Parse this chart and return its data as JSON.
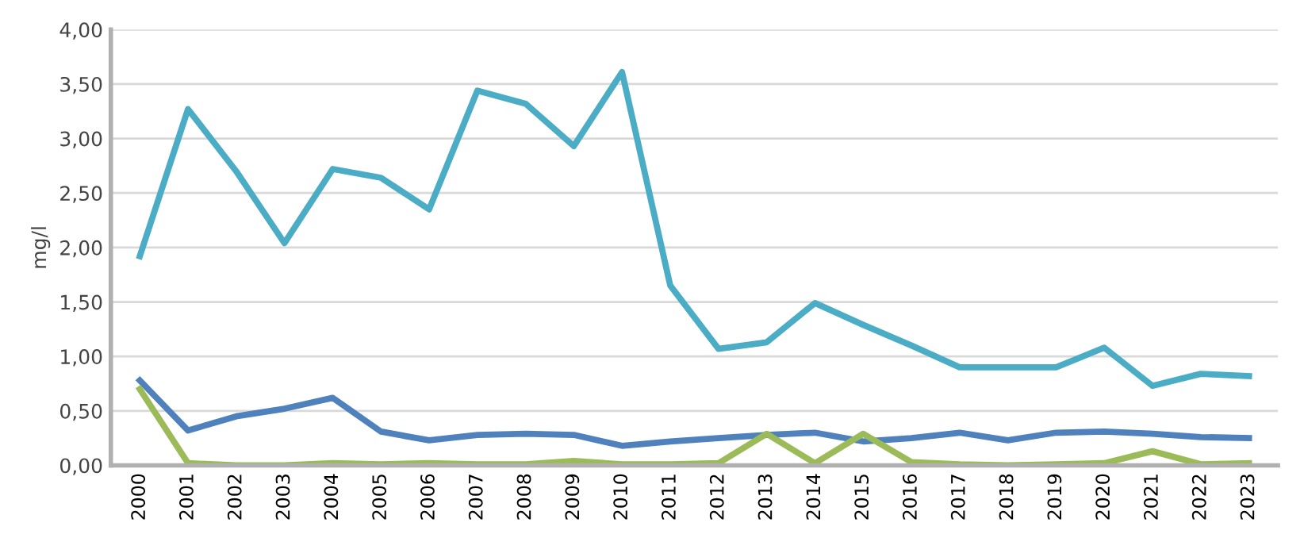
{
  "chart_data": {
    "type": "line",
    "ylabel": "mg/l",
    "categories": [
      "2000",
      "2001",
      "2002",
      "2003",
      "2004",
      "2005",
      "2006",
      "2007",
      "2008",
      "2009",
      "2010",
      "2011",
      "2012",
      "2013",
      "2014",
      "2015",
      "2016",
      "2017",
      "2018",
      "2019",
      "2020",
      "2021",
      "2022",
      "2023"
    ],
    "series": [
      {
        "color": "#4bacc6",
        "values": [
          1.92,
          3.27,
          2.7,
          2.04,
          2.72,
          2.64,
          2.35,
          3.44,
          3.32,
          2.93,
          3.61,
          1.65,
          1.07,
          1.13,
          1.49,
          1.29,
          1.1,
          0.9,
          0.9,
          0.9,
          1.08,
          0.73,
          0.84,
          0.82
        ]
      },
      {
        "color": "#4f81bd",
        "values": [
          0.78,
          0.32,
          0.45,
          0.52,
          0.62,
          0.31,
          0.23,
          0.28,
          0.29,
          0.28,
          0.18,
          0.22,
          0.25,
          0.28,
          0.3,
          0.22,
          0.25,
          0.3,
          0.23,
          0.3,
          0.31,
          0.29,
          0.26,
          0.25
        ]
      },
      {
        "color": "#9bbb59",
        "values": [
          0.7,
          0.02,
          0.0,
          0.0,
          0.02,
          0.01,
          0.02,
          0.01,
          0.01,
          0.04,
          0.01,
          0.01,
          0.02,
          0.29,
          0.02,
          0.29,
          0.03,
          0.01,
          0.0,
          0.01,
          0.02,
          0.13,
          0.01,
          0.02
        ]
      }
    ],
    "ylim": [
      0,
      4
    ],
    "yticks": [
      {
        "value": 0,
        "label": "0,00"
      },
      {
        "value": 0.5,
        "label": "0,50"
      },
      {
        "value": 1,
        "label": "1,00"
      },
      {
        "value": 1.5,
        "label": "1,50"
      },
      {
        "value": 2,
        "label": "2,00"
      },
      {
        "value": 2.5,
        "label": "2,50"
      },
      {
        "value": 3,
        "label": "3,00"
      },
      {
        "value": 3.5,
        "label": "3,50"
      },
      {
        "value": 4,
        "label": "4,00"
      }
    ],
    "grid": "y",
    "marker": "none",
    "line_style": "solid",
    "legend": false
  }
}
